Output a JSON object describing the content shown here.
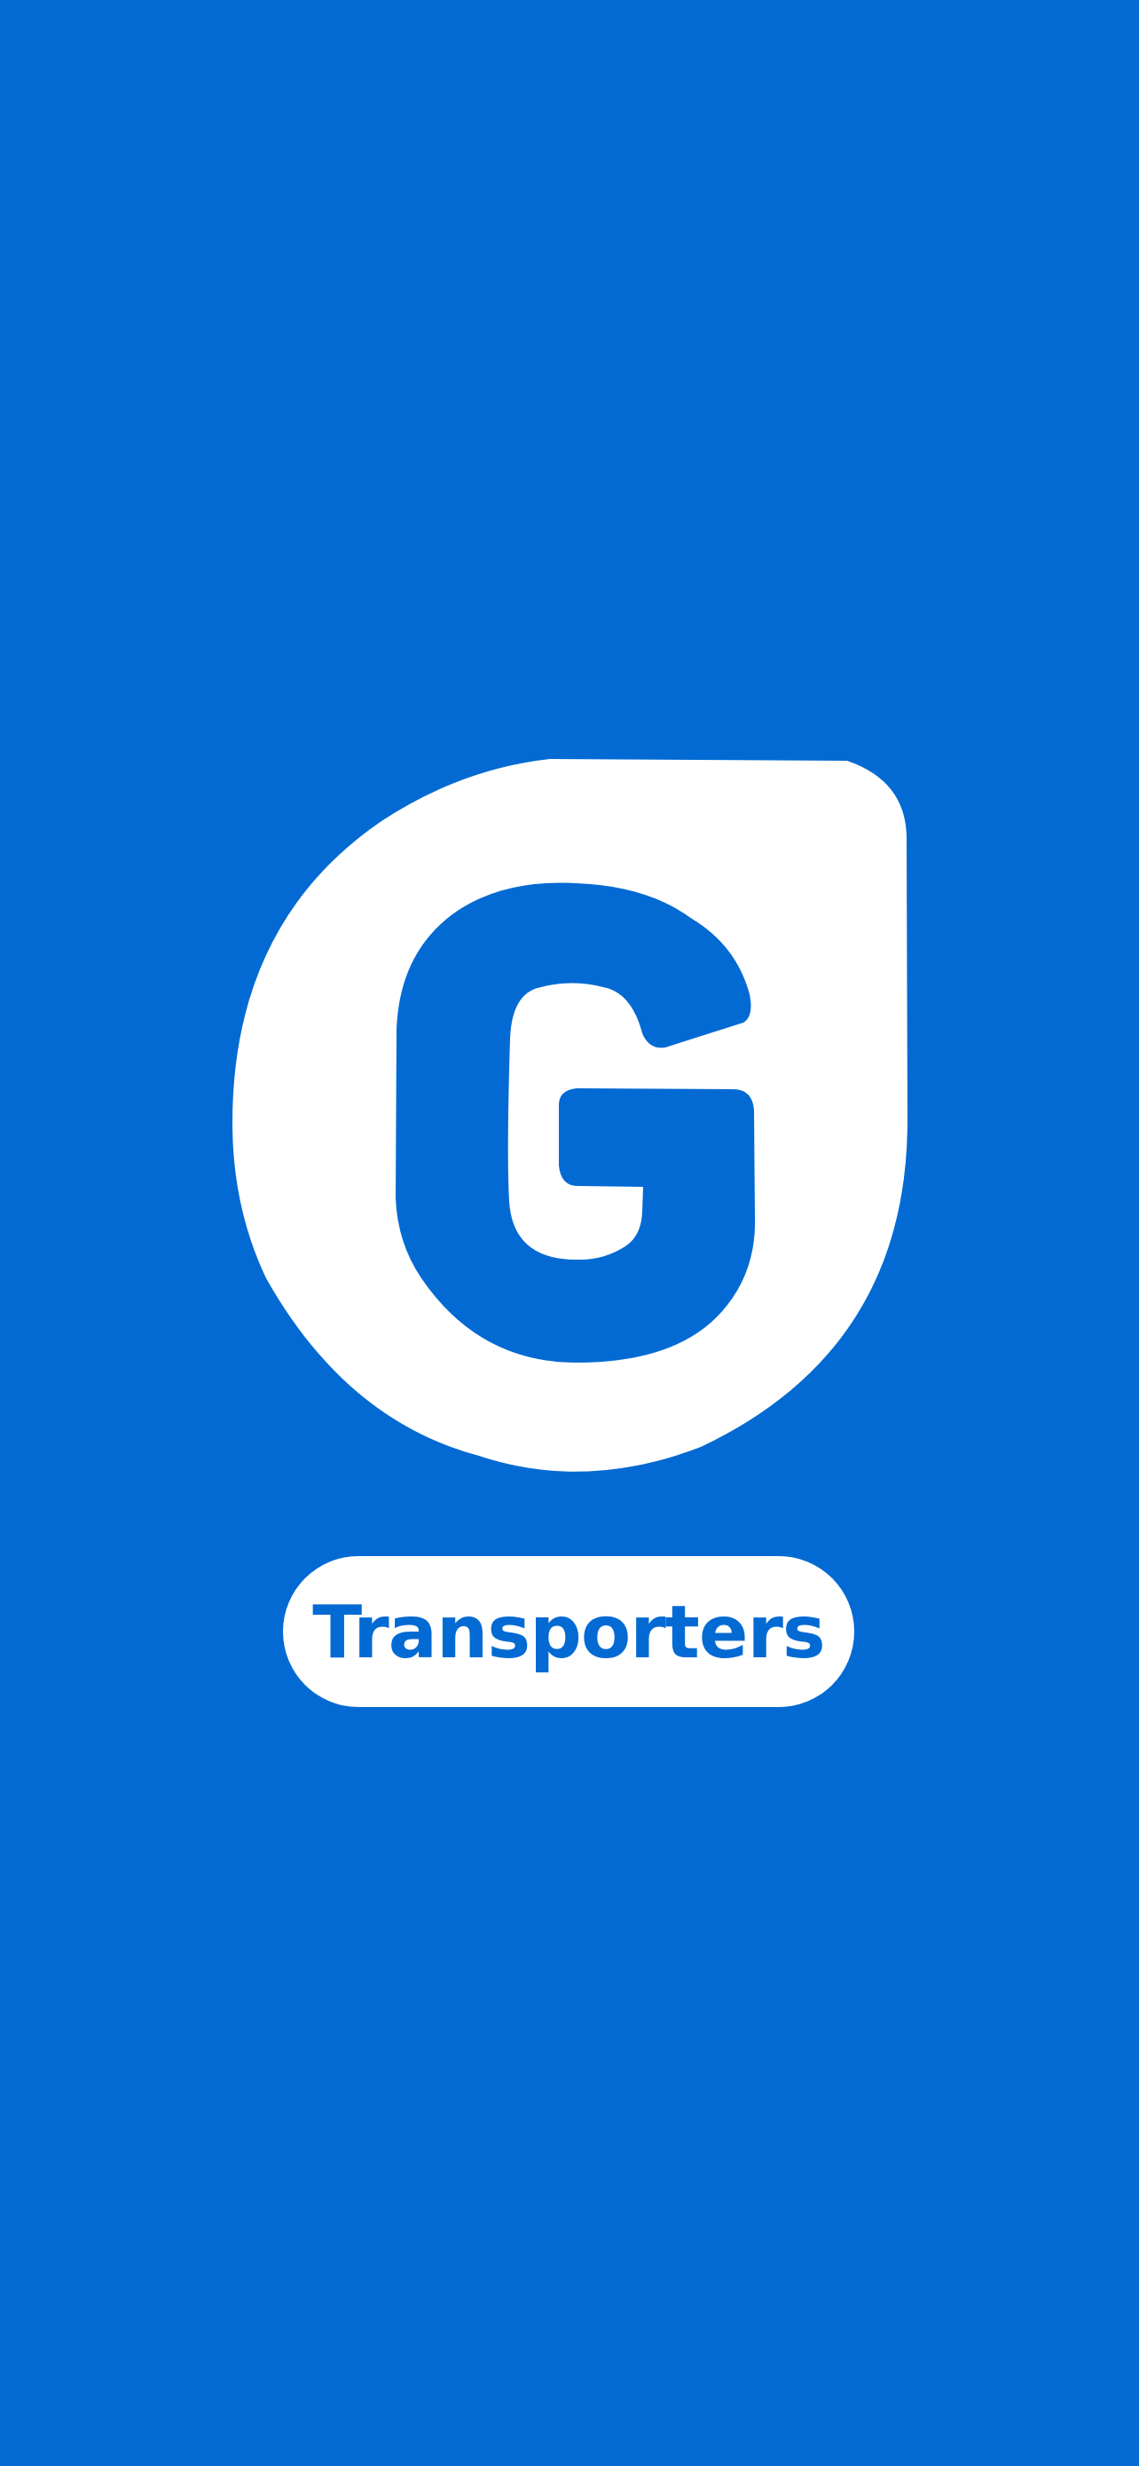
{
  "splash": {
    "background_color": "#036ad3",
    "logo": {
      "icon": "g-logo-icon",
      "letter": "G",
      "shape_color": "#ffffff",
      "letter_color": "#036ad3"
    },
    "badge": {
      "label": "Transporters",
      "background_color": "#ffffff",
      "text_color": "#036ad3"
    }
  }
}
